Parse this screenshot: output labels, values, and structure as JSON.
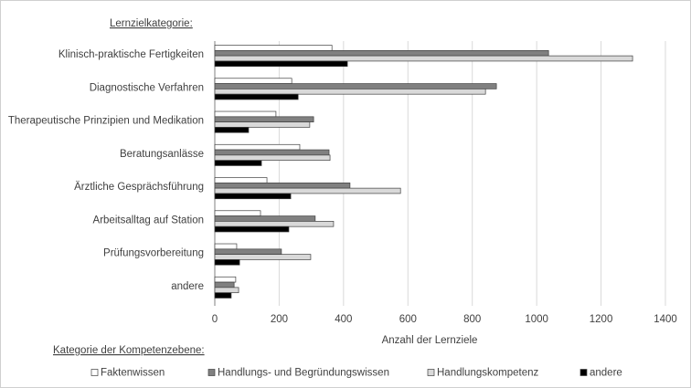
{
  "chart_data": {
    "type": "hbar",
    "y_label": "Lernzielkategorie:",
    "x_label": "Anzahl  der Lernziele",
    "legend_title": "Kategorie der Kompetenzebene:",
    "categories": [
      "Klinisch-praktische Fertigkeiten",
      "Diagnostische Verfahren",
      "Therapeutische Prinzipien und Medikation",
      "Beratungsanlässe",
      "Ärztliche Gesprächsführung",
      "Arbeitsalltag auf Station",
      "Prüfungsvorbereitung",
      "andere"
    ],
    "series": [
      {
        "name": "Faktenwissen",
        "color": "#ffffff",
        "values": [
          364,
          239,
          190,
          264,
          162,
          142,
          68,
          65
        ]
      },
      {
        "name": "Handlungs- und Begründungswissen",
        "color": "#808080",
        "values": [
          1037,
          875,
          307,
          355,
          420,
          312,
          207,
          60
        ]
      },
      {
        "name": "Handlungskompetenz",
        "color": "#d9d9d9",
        "values": [
          1298,
          841,
          295,
          358,
          577,
          369,
          298,
          74
        ]
      },
      {
        "name": "andere",
        "color": "#000000",
        "values": [
          412,
          259,
          105,
          145,
          236,
          230,
          77,
          51
        ]
      }
    ],
    "xlim": [
      0,
      1400
    ],
    "xticks": [
      0,
      200,
      400,
      600,
      800,
      1000,
      1200,
      1400
    ],
    "grid": true,
    "legend": "bottom"
  }
}
